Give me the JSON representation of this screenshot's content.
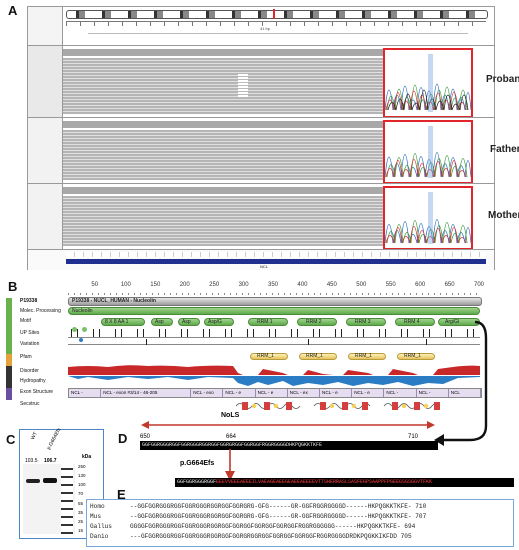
{
  "panels": {
    "a": "A",
    "b": "B",
    "c": "C",
    "d": "D",
    "e": "E"
  },
  "igv": {
    "samples": [
      "Proband",
      "Father",
      "Mother"
    ],
    "ruler_center": "41 bp",
    "locus_label": "NCL"
  },
  "protein": {
    "scale_ticks": [
      "50",
      "100",
      "150",
      "200",
      "250",
      "300",
      "350",
      "400",
      "450",
      "500",
      "550",
      "600",
      "650",
      "700"
    ],
    "tracks": [
      "P19338",
      "Molec. Processing",
      "Motif",
      "UP Sites",
      "Variation",
      "Pfam",
      "Disorder",
      "Hydropathy",
      "Exon Structure",
      "Secstruc"
    ],
    "side_tags": [
      "Uniprot",
      "Pfam",
      "Exons"
    ],
    "molec_bar": "P19338 - NUCL_HUMAN - Nucleolin",
    "nucleolin_bar": "Nucleolin",
    "motifs": [
      "8 X 8 AA 1",
      "Asp",
      "Asp",
      "Asp/G",
      "RRM 1",
      "RRM 2",
      "RRM 3",
      "RRM 4",
      "Arg/Gl"
    ],
    "pfam": [
      "RRM_1",
      "RRM_1",
      "RRM_1",
      "RRM_1"
    ],
    "exons": [
      "NCL -",
      "NCL - exon #3/14 - 46-205",
      "NCL - exo",
      "NCL - e",
      "NCL - e",
      "NCL - ex",
      "NCL - e",
      "NCL - e",
      "NCL -",
      "NCL -",
      "NCL"
    ]
  },
  "gel": {
    "lanes": [
      "WT",
      "p.G664Efs"
    ],
    "values": [
      "103.5",
      "106.7"
    ],
    "unit": "kDa",
    "markers": [
      "250",
      "130",
      "100",
      "70",
      "55",
      "35",
      "25",
      "15"
    ]
  },
  "nols": {
    "label": "NoLS",
    "start": "650",
    "mid": "664",
    "end": "710",
    "wt_seq": "GGFGGRGGGRGGFGGRGGGRGGRGGFGGRGRGGFGGRGGFRGGRGGGGDHKPQGKKTKFE",
    "mutation": "p.G664Efs",
    "mut_prefix": "GGFGGRGGGRGGF",
    "mut_suffix": "EEEVVEEEAEEEILVAEAGEAEEGEAEEAEEEEVTTSHERRASLSASFEGPSAAPPFPGEEGSGSGGVTFKK"
  },
  "alignment": [
    {
      "name": "Homo",
      "seq": "--GGFGGRGGGRGGFGGRGGGRGGRGGFGGRGRG-GFG------GR-GGFRGGRGGGGD------HKPQGKKTKFE-",
      "num": "710"
    },
    {
      "name": "Mus",
      "seq": "--GGFGGRGGGRGGFGGRGGGRGGRGGFGGRGRG-GFG------GR-GGFRGGRGGGGD------HKPQGKKTKFE-",
      "num": "707"
    },
    {
      "name": "Gallus",
      "seq": "GGGGFGGRGGGRGGFGGRGGGRGGRGGFGGRGGFGGRGGFGGRGGFRGGRGGGGGG------HKPQGKKTKFE-",
      "num": "694"
    },
    {
      "name": "Danio",
      "seq": "---GFGGRGGGRGGFGGRGGGRGGRGGFGGRGRGGRGGFGGRGGFGGRGGFRGGRGGGGDRDKPQGKKIKFDD",
      "num": "705"
    }
  ],
  "colors": {
    "accent_red": "#e0262a",
    "nols_arrow": "#c0392b",
    "disorder_red": "#c8282a",
    "hydro_blue": "#2a7cc4",
    "connector": "#111111"
  }
}
